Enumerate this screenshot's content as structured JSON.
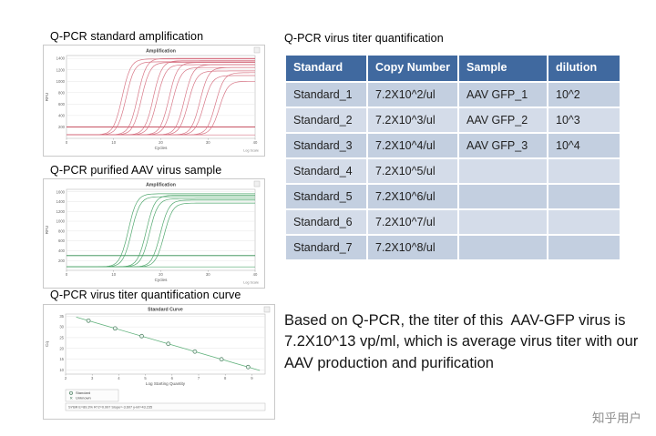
{
  "slide": {
    "charts_section": {
      "chart1_title": "Q-PCR standard amplification",
      "chart2_title": "Q-PCR purified AAV virus sample",
      "chart3_title": "Q-PCR virus titer quantification curve"
    },
    "quant_section": {
      "title": "Q-PCR virus titer quantification",
      "table": {
        "headers": [
          "Standard",
          "Copy Number",
          "Sample",
          "dilution"
        ],
        "rows": [
          [
            "Standard_1",
            "7.2X10^2/ul",
            "AAV GFP_1",
            "10^2"
          ],
          [
            "Standard_2",
            "7.2X10^3/ul",
            "AAV GFP_2",
            "10^3"
          ],
          [
            "Standard_3",
            "7.2X10^4/ul",
            "AAV GFP_3",
            "10^4"
          ],
          [
            "Standard_4",
            "7.2X10^5/ul",
            "",
            ""
          ],
          [
            "Standard_5",
            "7.2X10^6/ul",
            "",
            ""
          ],
          [
            "Standard_6",
            "7.2X10^7/ul",
            "",
            ""
          ],
          [
            "Standard_7",
            "7.2X10^8/ul",
            "",
            ""
          ]
        ]
      },
      "summary": "Based on Q-PCR, the titer of this  AAV-GFP virus is 7.2X10^13 vp/ml, which is average virus titer with our AAV production and purification"
    },
    "watermark": "知乎用户"
  },
  "colors": {
    "table_header_bg": "#40699f",
    "table_row_odd": "#c3cfe0",
    "table_row_even": "#d4dce9",
    "amp_standard_curve": "#d4687a",
    "amp_standard_threshold": "#c03a4e",
    "amp_sample_curve": "#3f9e5f",
    "amp_sample_threshold": "#2f8a4e",
    "std_curve_line": "#63b37e"
  },
  "chart_data": [
    {
      "type": "line",
      "name": "standard-amplification",
      "title": "Amplification",
      "xlabel": "Cycles",
      "ylabel": "RFU",
      "xlim": [
        0,
        40
      ],
      "ylim": [
        0,
        1450
      ],
      "xticks": [
        0,
        10,
        20,
        30,
        40
      ],
      "yticks": [
        200,
        400,
        600,
        800,
        1000,
        1200,
        1400
      ],
      "threshold": 200,
      "baseline": 60,
      "color": "#d4687a",
      "threshold_color": "#c03a4e",
      "footnote": "Log Scale",
      "curves": [
        {
          "ct": 11.8,
          "plateau": 1390
        },
        {
          "ct": 12.6,
          "plateau": 1340
        },
        {
          "ct": 15.1,
          "plateau": 1400
        },
        {
          "ct": 15.9,
          "plateau": 1330
        },
        {
          "ct": 18.4,
          "plateau": 1360
        },
        {
          "ct": 19.2,
          "plateau": 1290
        },
        {
          "ct": 21.7,
          "plateau": 1330
        },
        {
          "ct": 22.5,
          "plateau": 1240
        },
        {
          "ct": 25.0,
          "plateau": 1290
        },
        {
          "ct": 25.8,
          "plateau": 1180
        },
        {
          "ct": 28.3,
          "plateau": 1240
        },
        {
          "ct": 29.1,
          "plateau": 1100
        },
        {
          "ct": 31.6,
          "plateau": 1150
        },
        {
          "ct": 32.4,
          "plateau": 1000
        },
        {
          "ct": 999,
          "plateau": 60
        }
      ]
    },
    {
      "type": "line",
      "name": "aav-sample-amplification",
      "title": "Amplification",
      "xlabel": "Cycles",
      "ylabel": "RFU",
      "xlim": [
        0,
        40
      ],
      "ylim": [
        0,
        1650
      ],
      "xticks": [
        0,
        10,
        20,
        30,
        40
      ],
      "yticks": [
        200,
        400,
        600,
        800,
        1000,
        1200,
        1400,
        1600
      ],
      "threshold": 300,
      "baseline": 70,
      "color": "#3f9e5f",
      "threshold_color": "#2f8a4e",
      "footnote": "Log Scale",
      "curves": [
        {
          "ct": 13.1,
          "plateau": 1560
        },
        {
          "ct": 13.8,
          "plateau": 1500
        },
        {
          "ct": 16.9,
          "plateau": 1530
        },
        {
          "ct": 17.6,
          "plateau": 1460
        },
        {
          "ct": 19.9,
          "plateau": 1430
        },
        {
          "ct": 20.7,
          "plateau": 1370
        },
        {
          "ct": 999,
          "plateau": 70
        }
      ]
    },
    {
      "type": "scatter",
      "name": "standard-curve",
      "title": "Standard Curve",
      "xlabel": "Log Starting Quantity",
      "ylabel": "Cq",
      "xlim": [
        2,
        9.5
      ],
      "ylim": [
        8,
        36
      ],
      "xticks": [
        2,
        3,
        4,
        5,
        6,
        7,
        8,
        9
      ],
      "yticks": [
        10,
        15,
        20,
        25,
        30,
        35
      ],
      "line_color": "#63b37e",
      "marker_stroke": "#4a7d5e",
      "points": [
        [
          2.86,
          32.9
        ],
        [
          3.86,
          29.3
        ],
        [
          4.86,
          25.7
        ],
        [
          5.86,
          22.1
        ],
        [
          6.86,
          18.5
        ],
        [
          7.86,
          14.9
        ],
        [
          8.86,
          11.3
        ]
      ],
      "legend": [
        {
          "marker": "circle",
          "label": "Standard"
        },
        {
          "marker": "x",
          "label": "Unknown"
        }
      ],
      "stats": "SYBR   E=89.3%   R^2=0.997   Slope=-3.607   y-int=43.235"
    }
  ]
}
